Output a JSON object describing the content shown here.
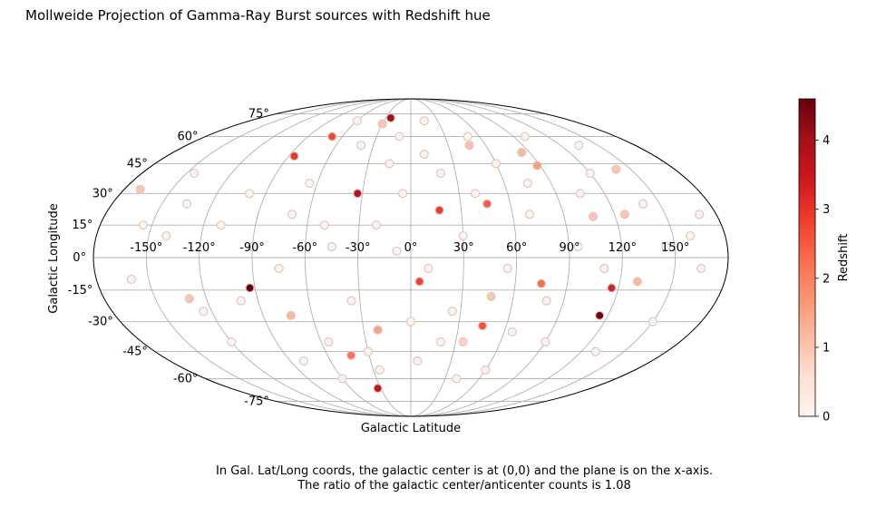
{
  "chart_data": {
    "type": "scatter",
    "projection": "mollweide",
    "title": "Mollweide Projection of Gamma-Ray Burst sources with Redshift hue",
    "xlabel": "Galactic Latitude",
    "ylabel": "Galactic Longitude",
    "x_ticks": [
      "-150°",
      "-120°",
      "-90°",
      "-60°",
      "-30°",
      "0°",
      "30°",
      "60°",
      "90°",
      "120°",
      "150°"
    ],
    "y_ticks": [
      "-75°",
      "-60°",
      "-45°",
      "-30°",
      "-15°",
      "0°",
      "15°",
      "30°",
      "45°",
      "60°",
      "75°"
    ],
    "xlim": [
      -180,
      180
    ],
    "ylim": [
      -90,
      90
    ],
    "grid": true,
    "colorbar": {
      "label": "Redshift",
      "colormap": "Reds",
      "min": 0,
      "max": 4.6,
      "ticks": [
        "0",
        "1",
        "2",
        "3",
        "4"
      ]
    },
    "caption": [
      "In Gal. Lat/Long coords, the galactic center is at (0,0) and the plane is on the x-axis.",
      "The ratio of the galactic center/anticenter counts is 1.08"
    ],
    "points": [
      {
        "lon": -24,
        "lat": 72,
        "z": 4.0
      },
      {
        "lon": -30,
        "lat": 68,
        "z": 1.0
      },
      {
        "lon": -69,
        "lat": 60,
        "z": 2.7
      },
      {
        "lon": -86,
        "lat": 49,
        "z": 3.0
      },
      {
        "lon": -33,
        "lat": 30,
        "z": 3.8
      },
      {
        "lon": 17,
        "lat": 22,
        "z": 2.9
      },
      {
        "lon": 46,
        "lat": 25,
        "z": 2.5
      },
      {
        "lon": 47,
        "lat": 55,
        "z": 1.1
      },
      {
        "lon": 84,
        "lat": 51,
        "z": 1.2
      },
      {
        "lon": 88,
        "lat": 44,
        "z": 1.6
      },
      {
        "lon": 140,
        "lat": 42,
        "z": 1.0
      },
      {
        "lon": -170,
        "lat": 32,
        "z": 1.0
      },
      {
        "lon": 107,
        "lat": 19,
        "z": 1.0
      },
      {
        "lon": 126,
        "lat": 20,
        "z": 1.0
      },
      {
        "lon": 5,
        "lat": -11,
        "z": 2.8
      },
      {
        "lon": -93,
        "lat": -14,
        "z": 4.6
      },
      {
        "lon": 75,
        "lat": -12,
        "z": 2.3
      },
      {
        "lon": 116,
        "lat": -14,
        "z": 3.3
      },
      {
        "lon": 130,
        "lat": -11,
        "z": 1.2
      },
      {
        "lon": 115,
        "lat": -27,
        "z": 4.5
      },
      {
        "lon": 45,
        "lat": -32,
        "z": 2.6
      },
      {
        "lon": 47,
        "lat": -18,
        "z": 1.0
      },
      {
        "lon": -73,
        "lat": -27,
        "z": 1.2
      },
      {
        "lon": -130,
        "lat": -19,
        "z": 1.0
      },
      {
        "lon": -21,
        "lat": -34,
        "z": 1.5
      },
      {
        "lon": -43,
        "lat": -47,
        "z": 2.2
      },
      {
        "lon": -33,
        "lat": -66,
        "z": 3.6
      },
      {
        "lon": 35,
        "lat": -40,
        "z": 0.8
      },
      {
        "lon": -8,
        "lat": 3,
        "z": 0.1
      },
      {
        "lon": 20,
        "lat": 40,
        "z": 0.1
      },
      {
        "lon": -100,
        "lat": 30,
        "z": 0.1
      },
      {
        "lon": -140,
        "lat": 10,
        "z": 0.1
      },
      {
        "lon": 160,
        "lat": 10,
        "z": 0.1
      },
      {
        "lon": 150,
        "lat": -30,
        "z": 0.1
      },
      {
        "lon": 60,
        "lat": -55,
        "z": 0.1
      },
      {
        "lon": -60,
        "lat": -60,
        "z": 0.1
      },
      {
        "lon": -120,
        "lat": -40,
        "z": 0.1
      },
      {
        "lon": 100,
        "lat": 60,
        "z": 0.1
      },
      {
        "lon": -10,
        "lat": 60,
        "z": 0.1
      },
      {
        "lon": 30,
        "lat": 10,
        "z": 0.1
      },
      {
        "lon": 0,
        "lat": -30,
        "z": 0.1
      },
      {
        "lon": 70,
        "lat": 20,
        "z": 0.1
      },
      {
        "lon": -50,
        "lat": 15,
        "z": 0.1
      },
      {
        "lon": -80,
        "lat": -50,
        "z": 0.1
      },
      {
        "lon": 120,
        "lat": 40,
        "z": 0.1
      },
      {
        "lon": -160,
        "lat": -10,
        "z": 0.1
      },
      {
        "lon": 10,
        "lat": 50,
        "z": 0.1
      },
      {
        "lon": -25,
        "lat": -55,
        "z": 0.1
      },
      {
        "lon": 90,
        "lat": -40,
        "z": 0.1
      },
      {
        "lon": -110,
        "lat": 15,
        "z": 0.1
      },
      {
        "lon": 55,
        "lat": -5,
        "z": 0.1
      },
      {
        "lon": 140,
        "lat": 25,
        "z": 0.1
      },
      {
        "lon": -65,
        "lat": 35,
        "z": 0.1
      },
      {
        "lon": 40,
        "lat": -60,
        "z": 0.1
      },
      {
        "lon": -145,
        "lat": 40,
        "z": 0.1
      },
      {
        "lon": 165,
        "lat": -5,
        "z": 0.1
      },
      {
        "lon": -5,
        "lat": 30,
        "z": 0.1
      },
      {
        "lon": 25,
        "lat": -25,
        "z": 0.1
      },
      {
        "lon": -35,
        "lat": -20,
        "z": 0.1
      },
      {
        "lon": 75,
        "lat": 35,
        "z": 0.1
      },
      {
        "lon": -90,
        "lat": 5,
        "z": 0.1
      },
      {
        "lon": 110,
        "lat": -5,
        "z": 0.1
      },
      {
        "lon": -15,
        "lat": 45,
        "z": 0.1
      },
      {
        "lon": 50,
        "lat": 60,
        "z": 0.1
      },
      {
        "lon": -125,
        "lat": -25,
        "z": 0.1
      },
      {
        "lon": 135,
        "lat": 55,
        "z": 0.1
      },
      {
        "lon": -55,
        "lat": -40,
        "z": 0.1
      },
      {
        "lon": 5,
        "lat": -50,
        "z": 0.1
      },
      {
        "lon": -40,
        "lat": 55,
        "z": 0.1
      },
      {
        "lon": 95,
        "lat": 5,
        "z": 0.1
      },
      {
        "lon": -75,
        "lat": -5,
        "z": 0.1
      },
      {
        "lon": 60,
        "lat": 45,
        "z": 0.1
      },
      {
        "lon": -135,
        "lat": 25,
        "z": 0.1
      },
      {
        "lon": 170,
        "lat": 20,
        "z": 0.1
      },
      {
        "lon": 20,
        "lat": -40,
        "z": 0.1
      },
      {
        "lon": -20,
        "lat": 15,
        "z": 0.1
      },
      {
        "lon": 80,
        "lat": -20,
        "z": 0.1
      },
      {
        "lon": -100,
        "lat": -20,
        "z": 0.1
      },
      {
        "lon": 40,
        "lat": 30,
        "z": 0.1
      },
      {
        "lon": -60,
        "lat": 70,
        "z": 0.1
      },
      {
        "lon": 130,
        "lat": -45,
        "z": 0.1
      },
      {
        "lon": 15,
        "lat": 70,
        "z": 0.1
      },
      {
        "lon": -45,
        "lat": 5,
        "z": 0.1
      },
      {
        "lon": 65,
        "lat": -35,
        "z": 0.1
      },
      {
        "lon": -155,
        "lat": 15,
        "z": 0.1
      },
      {
        "lon": 10,
        "lat": -5,
        "z": 0.1
      },
      {
        "lon": -30,
        "lat": -45,
        "z": 0.1
      },
      {
        "lon": 105,
        "lat": 30,
        "z": 0.1
      },
      {
        "lon": -70,
        "lat": 20,
        "z": 0.1
      },
      {
        "lon": 145,
        "lat": 5,
        "z": 0.1
      }
    ]
  }
}
